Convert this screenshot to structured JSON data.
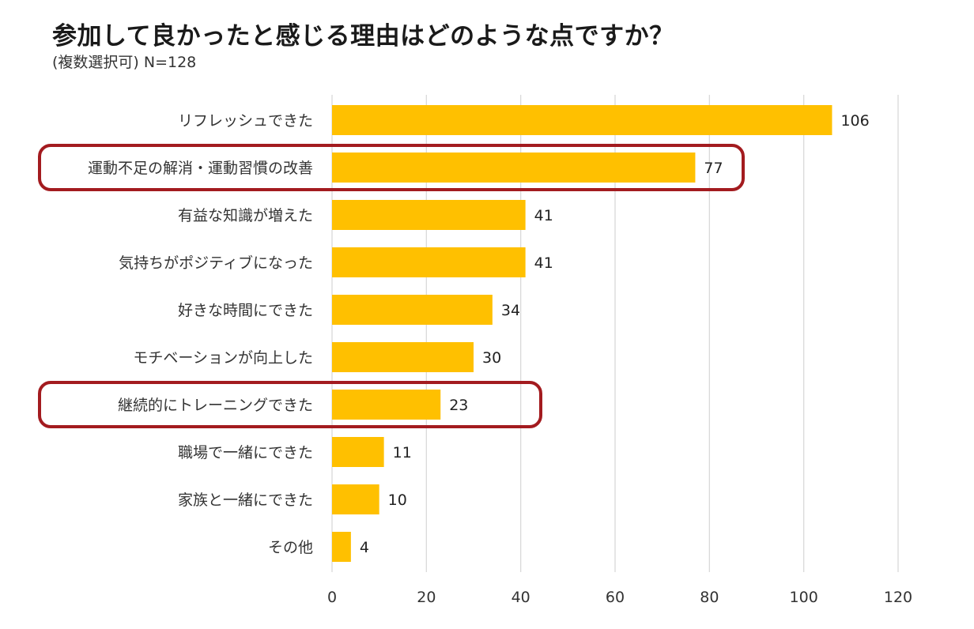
{
  "chart_data": {
    "type": "bar",
    "orientation": "horizontal",
    "title": "参加して良かったと感じる理由はどのような点ですか？",
    "subtitle": "(複数選択可) N=128",
    "categories": [
      "リフレッシュできた",
      "運動不足の解消・運動習慣の改善",
      "有益な知識が増えた",
      "気持ちがポジティブになった",
      "好きな時間にできた",
      "モチベーションが向上した",
      "継続的にトレーニングできた",
      "職場で一緒にできた",
      "家族と一緒にできた",
      "その他"
    ],
    "values": [
      106,
      77,
      41,
      41,
      34,
      30,
      23,
      11,
      10,
      4
    ],
    "value_labels": [
      "106",
      "77",
      "41",
      "41",
      "34",
      "30",
      "23",
      "11",
      "10",
      "4"
    ],
    "xlim": [
      0,
      120
    ],
    "xticks": [
      0,
      20,
      40,
      60,
      80,
      100,
      120
    ],
    "xtick_labels": [
      "0",
      "20",
      "40",
      "60",
      "80",
      "100",
      "120"
    ],
    "grid": "vertical",
    "highlighted_categories": [
      1,
      6
    ],
    "bar_color": "#FFC000",
    "highlight_color": "#A31B1F",
    "grid_color": "#D9D9D9"
  }
}
